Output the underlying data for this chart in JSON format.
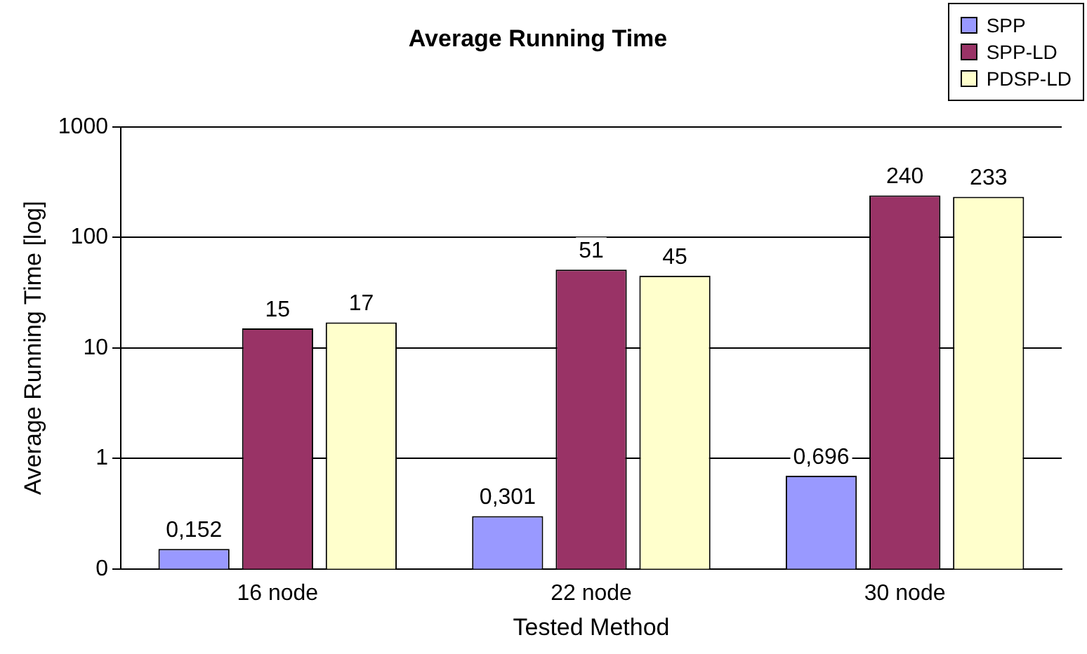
{
  "chart_data": {
    "type": "bar",
    "title": "Average Running Time",
    "xlabel": "Tested Method",
    "ylabel": "Average Running Time [log]",
    "categories": [
      "16 node",
      "22 node",
      "30 node"
    ],
    "series": [
      {
        "name": "SPP",
        "color": "#9999ff",
        "values": [
          0.152,
          0.301,
          0.696
        ],
        "value_labels": [
          "0,152",
          "0,301",
          "0,696"
        ]
      },
      {
        "name": "SPP-LD",
        "color": "#993366",
        "values": [
          15,
          51,
          240
        ],
        "value_labels": [
          "15",
          "51",
          "240"
        ]
      },
      {
        "name": "PDSP-LD",
        "color": "#ffffcc",
        "values": [
          17,
          45,
          233
        ],
        "value_labels": [
          "17",
          "45",
          "233"
        ]
      }
    ],
    "log": "y",
    "ylim": [
      0.1,
      1000
    ],
    "yticks": [
      {
        "value": 0.1,
        "label": "0"
      },
      1,
      10,
      100,
      1000
    ],
    "grid": "y",
    "legend": "top right"
  }
}
